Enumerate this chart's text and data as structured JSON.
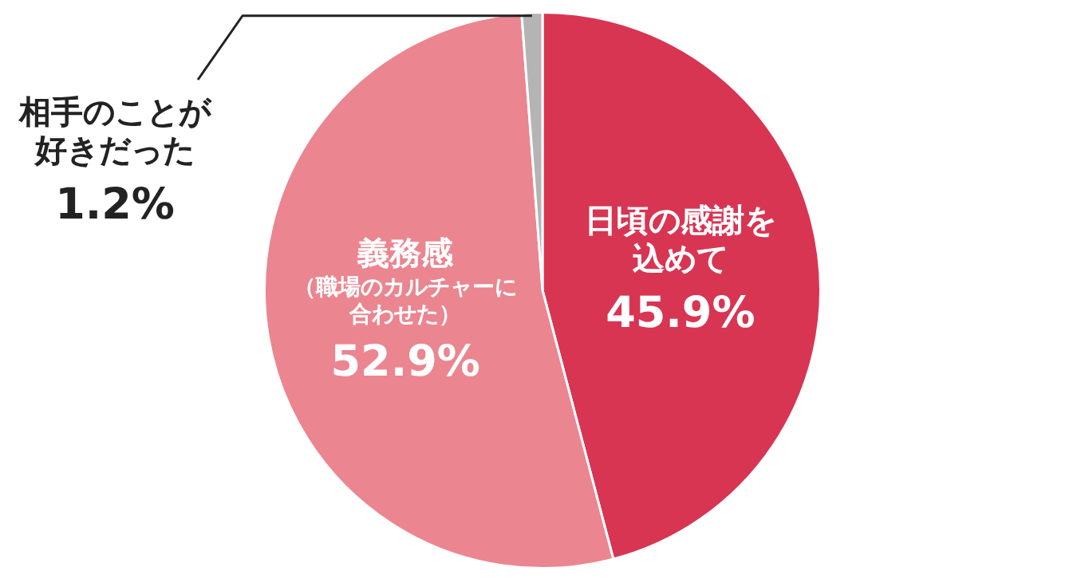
{
  "chart_data": {
    "type": "pie",
    "categories": [
      "日頃の感謝を込めて",
      "義務感",
      "相手のことが好きだった"
    ],
    "values": [
      45.9,
      52.9,
      1.2
    ],
    "colors": [
      "#d83553",
      "#eb8590",
      "#b4b4b4"
    ],
    "value_labels": [
      "45.9%",
      "52.9%",
      "1.2%"
    ],
    "annotations": [
      {
        "text": "（職場のカルチャーに合わせた）",
        "x": "義務感"
      }
    ],
    "legend": false
  }
}
